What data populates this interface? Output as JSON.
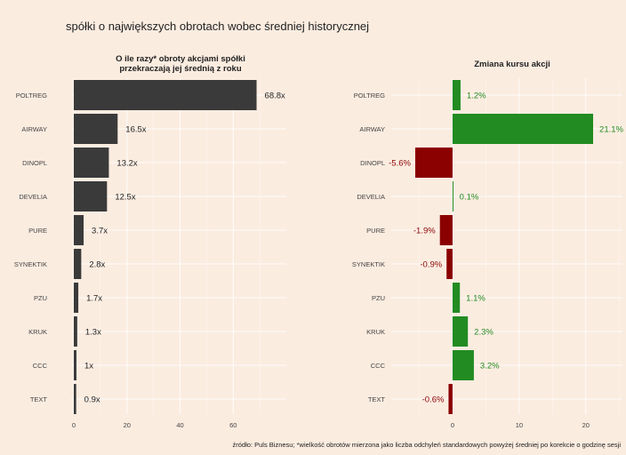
{
  "title": "spółki o największych obrotach wobec średniej historycznej",
  "footnote": "źródło: Puls Biznesu; *wielkość obrotów mierzona jako liczba odchyleń standardowych powyżej średniej po korekcie o godzinę sesji",
  "colors": {
    "background": "#fbece0",
    "bar_dark": "#3a3a3a",
    "positive": "#228b22",
    "negative": "#8b0000"
  },
  "chart_data": [
    {
      "type": "bar",
      "orientation": "horizontal",
      "title_lines": [
        "O ile razy* obroty akcjami spółki",
        "przekraczają jej średnią z roku"
      ],
      "categories": [
        "POLTREG",
        "AIRWAY",
        "DINOPL",
        "DEVELIA",
        "PURE",
        "SYNEKTIK",
        "PZU",
        "KRUK",
        "CCC",
        "TEXT"
      ],
      "values": [
        68.8,
        16.5,
        13.2,
        12.5,
        3.7,
        2.8,
        1.7,
        1.3,
        1.0,
        0.9
      ],
      "labels": [
        "68.8x",
        "16.5x",
        "13.2x",
        "12.5x",
        "3.7x",
        "2.8x",
        "1.7x",
        "1.3x",
        "1x",
        "0.9x"
      ],
      "xlim": [
        -1,
        80
      ],
      "xticks": [
        0,
        20,
        40,
        60
      ],
      "grid": true
    },
    {
      "type": "bar",
      "orientation": "horizontal",
      "title_lines": [
        "Zmiana kursu akcji"
      ],
      "categories": [
        "POLTREG",
        "AIRWAY",
        "DINOPL",
        "DEVELIA",
        "PURE",
        "SYNEKTIK",
        "PZU",
        "KRUK",
        "CCC",
        "TEXT"
      ],
      "values": [
        1.2,
        21.1,
        -5.6,
        0.1,
        -1.9,
        -0.9,
        1.1,
        2.3,
        3.2,
        -0.6
      ],
      "labels": [
        "1.2%",
        "21.1%",
        "-5.6%",
        "0.1%",
        "-1.9%",
        "-0.9%",
        "1.1%",
        "2.3%",
        "3.2%",
        "-0.6%"
      ],
      "xlim": [
        -9.2,
        25.5
      ],
      "xticks": [
        0,
        10,
        20
      ],
      "grid": true
    }
  ]
}
